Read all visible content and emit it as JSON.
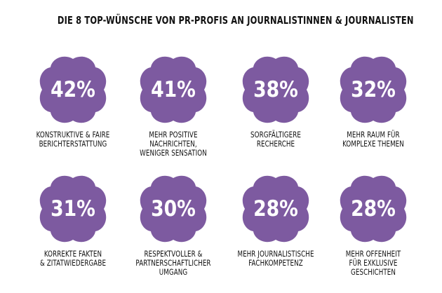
{
  "title": "DIE 8 TOP-WÜNSCHE VON PR-PROFIS AN JOURNALISTINNEN & JOURNALISTEN",
  "colors": {
    "blob": "#7d5aa0",
    "text": "#111111",
    "value": "#ffffff"
  },
  "chart_data": {
    "type": "table",
    "unit": "%",
    "items": [
      {
        "value_label": "42%",
        "value": 42,
        "label_lines": [
          "KONSTRUKTIVE & FAIRE",
          "BERICHTERSTATTUNG"
        ]
      },
      {
        "value_label": "41%",
        "value": 41,
        "label_lines": [
          "MEHR POSITIVE",
          "NACHRICHTEN,",
          "WENIGER SENSATION"
        ]
      },
      {
        "value_label": "38%",
        "value": 38,
        "label_lines": [
          "SORGFÄLTIGERE",
          "RECHERCHE"
        ]
      },
      {
        "value_label": "32%",
        "value": 32,
        "label_lines": [
          "MEHR RAUM FÜR",
          "KOMPLEXE THEMEN"
        ]
      },
      {
        "value_label": "31%",
        "value": 31,
        "label_lines": [
          "KORREKTE FAKTEN",
          "& ZITATWIEDERGABE"
        ]
      },
      {
        "value_label": "30%",
        "value": 30,
        "label_lines": [
          "RESPEKTVOLLER &",
          "PARTNERSCHAFTLICHER",
          "UMGANG"
        ]
      },
      {
        "value_label": "28%",
        "value": 28,
        "label_lines": [
          "MEHR JOURNALISTISCHE",
          "FACHKOMPETENZ"
        ]
      },
      {
        "value_label": "28%",
        "value": 28,
        "label_lines": [
          "MEHR OFFENHEIT",
          "FÜR EXKLUSIVE",
          "GESCHICHTEN"
        ]
      }
    ]
  }
}
